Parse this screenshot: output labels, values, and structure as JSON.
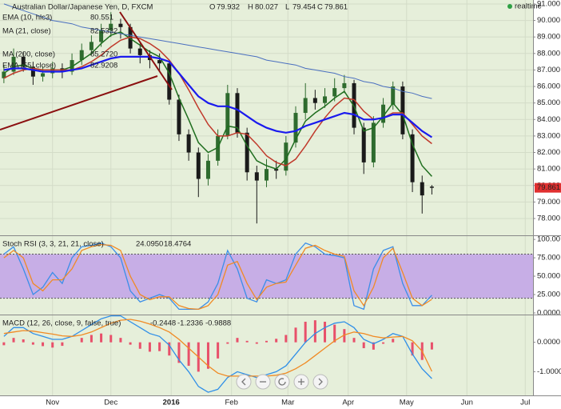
{
  "chart_data": [
    {
      "type": "candlestick",
      "title": "Australian Dollar/Japanese Yen, D, FXCM",
      "ohlc_labels": [
        "O",
        "H",
        "L",
        "C"
      ],
      "ohlc_values": [
        79.932,
        80.027,
        79.454,
        79.861
      ],
      "status": "realtime",
      "x": [
        -25,
        -20,
        -15,
        -10,
        -5,
        0,
        5,
        10,
        15,
        20,
        25,
        30,
        35,
        40,
        45,
        50,
        55,
        60,
        65,
        70,
        75,
        80,
        85,
        90,
        95,
        100,
        105,
        110,
        115,
        120,
        125,
        130,
        135,
        140,
        145,
        150,
        155,
        160,
        165,
        170,
        175,
        180,
        185,
        190,
        195
      ],
      "xlim": [
        -27,
        247
      ],
      "xticks": [
        {
          "value": 0,
          "label": "Nov"
        },
        {
          "value": 30,
          "label": "Dec"
        },
        {
          "value": 61,
          "label": "2016"
        },
        {
          "value": 92,
          "label": "Feb"
        },
        {
          "value": 121,
          "label": "Mar"
        },
        {
          "value": 152,
          "label": "Apr"
        },
        {
          "value": 182,
          "label": "May"
        },
        {
          "value": 213,
          "label": "Jun"
        },
        {
          "value": 243,
          "label": "Jul"
        }
      ],
      "open": [
        86.5,
        86.9,
        87.8,
        87.2,
        86.6,
        86.8,
        87.1,
        86.9,
        87.6,
        88.2,
        88.7,
        89.4,
        89.8,
        89.6,
        88.3,
        87.9,
        87.6,
        87.4,
        85.2,
        83.1,
        82.0,
        80.4,
        81.5,
        83.0,
        85.6,
        83.2,
        80.8,
        80.3,
        81.0,
        80.9,
        82.6,
        84.4,
        85.3,
        85.0,
        85.4,
        85.9,
        86.2,
        83.5,
        81.4,
        83.8,
        84.9,
        86.0,
        83.1,
        80.2,
        79.932
      ],
      "high": [
        87.3,
        88.3,
        88.1,
        87.5,
        87.2,
        87.5,
        87.4,
        88.0,
        88.6,
        89.1,
        89.8,
        90.5,
        90.1,
        89.8,
        88.6,
        88.2,
        88.0,
        87.6,
        85.5,
        83.4,
        82.3,
        81.9,
        83.4,
        86.1,
        85.9,
        83.5,
        81.2,
        81.6,
        81.5,
        83.0,
        84.8,
        86.2,
        85.8,
        85.9,
        86.5,
        86.7,
        86.4,
        83.8,
        84.2,
        85.3,
        86.3,
        86.3,
        83.4,
        80.6,
        80.027
      ],
      "low": [
        86.2,
        86.7,
        86.9,
        86.1,
        86.3,
        86.5,
        86.5,
        86.7,
        87.3,
        87.9,
        88.4,
        89.0,
        88.9,
        88.0,
        87.4,
        87.1,
        86.9,
        84.9,
        82.7,
        81.5,
        79.3,
        80.0,
        81.2,
        82.8,
        82.9,
        80.3,
        77.7,
        79.9,
        80.4,
        80.6,
        82.3,
        84.0,
        84.6,
        84.7,
        85.1,
        85.6,
        83.1,
        80.7,
        81.1,
        83.5,
        84.6,
        82.8,
        79.6,
        78.3,
        79.454
      ],
      "close": [
        86.9,
        87.8,
        87.2,
        86.6,
        86.8,
        87.1,
        86.9,
        87.6,
        88.2,
        88.7,
        89.4,
        89.8,
        89.6,
        88.3,
        87.9,
        87.6,
        87.4,
        85.2,
        83.1,
        82.0,
        80.4,
        81.5,
        83.0,
        85.6,
        83.2,
        80.8,
        80.3,
        81.0,
        80.9,
        82.6,
        84.4,
        85.3,
        85.0,
        85.4,
        85.9,
        86.2,
        83.5,
        81.4,
        83.8,
        84.9,
        86.0,
        83.1,
        80.2,
        79.4,
        79.861
      ],
      "up_color": "#2e6b2e",
      "down_color": "#1a1a1a",
      "ylim": [
        77.03,
        91.24
      ],
      "yticks": [
        {
          "value": 91,
          "label": "91.000"
        },
        {
          "value": 90,
          "label": "90.000"
        },
        {
          "value": 89,
          "label": "89.000"
        },
        {
          "value": 88,
          "label": "88.000"
        },
        {
          "value": 87,
          "label": "87.000"
        },
        {
          "value": 86,
          "label": "86.000"
        },
        {
          "value": 85,
          "label": "85.000"
        },
        {
          "value": 84,
          "label": "84.000"
        },
        {
          "value": 83,
          "label": "83.000"
        },
        {
          "value": 82,
          "label": "82.000"
        },
        {
          "value": 81,
          "label": "81.000"
        },
        {
          "value": 80,
          "label": "80.000"
        },
        {
          "value": 79,
          "label": "79.000"
        },
        {
          "value": 78,
          "label": "78.000"
        }
      ],
      "grid": true,
      "series": [
        {
          "name": "EMA (10, hlc3)",
          "color": "#1f6e1f",
          "line_width": 1.5,
          "legend_value": 80.551,
          "values": [
            86.8,
            87.2,
            87.3,
            87.1,
            87.0,
            87.0,
            87.0,
            87.2,
            87.6,
            88.0,
            88.6,
            89.1,
            89.3,
            88.9,
            88.5,
            88.1,
            87.8,
            86.8,
            85.3,
            84.0,
            82.6,
            82.0,
            82.3,
            83.6,
            83.5,
            82.4,
            81.5,
            81.2,
            81.0,
            81.6,
            82.8,
            83.9,
            84.4,
            84.8,
            85.3,
            85.7,
            84.8,
            83.3,
            83.5,
            84.2,
            85.0,
            84.3,
            82.5,
            81.2,
            80.551
          ]
        },
        {
          "name": "MA (21, close)",
          "color": "#c0392b",
          "line_width": 1.5,
          "legend_value": 82.5332,
          "values": [
            86.5,
            86.8,
            87.0,
            87.1,
            87.0,
            87.0,
            87.0,
            87.0,
            87.2,
            87.5,
            87.9,
            88.4,
            88.8,
            89.0,
            88.9,
            88.6,
            88.2,
            87.6,
            86.8,
            85.8,
            84.7,
            83.7,
            83.0,
            83.0,
            83.2,
            83.1,
            82.5,
            81.8,
            81.4,
            81.2,
            81.6,
            82.4,
            83.3,
            84.1,
            84.8,
            85.3,
            85.2,
            84.5,
            84.0,
            84.1,
            84.4,
            84.4,
            83.7,
            83.0,
            82.5332
          ]
        },
        {
          "name": "MA (200, close)",
          "color": "#4a6fbf",
          "line_width": 1,
          "legend_value": {
            "value": 85.272,
            "label": "85.2720"
          },
          "values": [
            91.0,
            90.8,
            90.6,
            90.4,
            90.2,
            90.0,
            89.9,
            89.8,
            89.6,
            89.5,
            89.4,
            89.3,
            89.2,
            89.1,
            89.0,
            88.9,
            88.8,
            88.7,
            88.6,
            88.5,
            88.4,
            88.3,
            88.2,
            88.1,
            88.0,
            87.9,
            87.8,
            87.6,
            87.5,
            87.4,
            87.3,
            87.1,
            87.0,
            86.9,
            86.8,
            86.6,
            86.5,
            86.3,
            86.2,
            86.0,
            85.9,
            85.7,
            85.6,
            85.4,
            85.272
          ]
        },
        {
          "name": "EMA (55, close)",
          "color": "#1a1aee",
          "line_width": 2.2,
          "legend_value": 82.9208,
          "values": [
            87.0,
            87.1,
            87.1,
            87.0,
            86.9,
            86.9,
            86.9,
            87.0,
            87.1,
            87.3,
            87.5,
            87.7,
            87.8,
            87.8,
            87.8,
            87.8,
            87.7,
            87.5,
            86.8,
            86.1,
            85.4,
            85.0,
            84.8,
            84.8,
            84.6,
            84.2,
            83.8,
            83.5,
            83.3,
            83.2,
            83.3,
            83.6,
            83.8,
            84.0,
            84.2,
            84.4,
            84.3,
            84.0,
            84.0,
            84.1,
            84.3,
            84.3,
            83.8,
            83.3,
            82.9208
          ]
        }
      ]
    },
    {
      "type": "line",
      "title": "Stoch RSI (3, 3, 21, 21, close)",
      "band": [
        20,
        80
      ],
      "band_color": "#c7aee6",
      "ylim": [
        -2.2,
        104.5
      ],
      "yticks": [
        {
          "value": 100,
          "label": "100.00"
        },
        {
          "value": 75,
          "label": "75.000"
        },
        {
          "value": 50,
          "label": "50.000"
        },
        {
          "value": 25,
          "label": "25.000"
        },
        {
          "value": 0,
          "label": "0.0000"
        }
      ],
      "series": [
        {
          "color": "#3b8ee8",
          "line_width": 1.3,
          "legend_value": {
            "value": 24.095,
            "label": "24.0950"
          },
          "values": [
            80,
            90,
            60,
            25,
            35,
            55,
            40,
            75,
            90,
            92,
            95,
            90,
            75,
            30,
            15,
            20,
            25,
            20,
            5,
            5,
            5,
            15,
            40,
            85,
            60,
            20,
            15,
            45,
            40,
            45,
            80,
            95,
            90,
            80,
            78,
            75,
            10,
            5,
            60,
            85,
            90,
            40,
            10,
            10,
            24.095
          ]
        },
        {
          "color": "#f08a24",
          "line_width": 1.3,
          "legend_value": 18.4764,
          "values": [
            75,
            85,
            75,
            40,
            30,
            45,
            45,
            60,
            85,
            90,
            93,
            92,
            85,
            50,
            25,
            18,
            22,
            22,
            10,
            6,
            5,
            10,
            25,
            65,
            70,
            40,
            18,
            35,
            40,
            42,
            65,
            88,
            92,
            85,
            80,
            77,
            30,
            10,
            35,
            75,
            88,
            55,
            20,
            10,
            18.4764
          ]
        }
      ]
    },
    {
      "type": "line",
      "title": "MACD (12, 26, close, 9, false, true)",
      "ylim": [
        -1.806,
        0.917
      ],
      "yticks": [
        {
          "value": 0,
          "label": "0.0000"
        },
        {
          "value": -1,
          "label": "-1.0000"
        }
      ],
      "series": [
        {
          "kind": "bar",
          "color": "#e8506a",
          "legend_value": -0.2448,
          "values": [
            -0.1,
            0.15,
            0.1,
            -0.08,
            -0.13,
            -0.18,
            -0.12,
            0,
            0.15,
            0.25,
            0.3,
            0.25,
            0.15,
            -0.08,
            -0.22,
            -0.32,
            -0.3,
            -0.45,
            -0.7,
            -0.8,
            -1.0,
            -0.9,
            -0.55,
            -0.05,
            0.15,
            0.05,
            -0.05,
            0.05,
            0.12,
            0.25,
            0.5,
            0.7,
            0.75,
            0.7,
            0.6,
            0.45,
            0.15,
            -0.2,
            -0.25,
            -0.05,
            0.12,
            0,
            -0.45,
            -0.6,
            -0.2448
          ]
        },
        {
          "color": "#2f8fe8",
          "line_width": 1.3,
          "legend_value": -1.2336,
          "values": [
            0.2,
            0.5,
            0.5,
            0.3,
            0.2,
            0.1,
            0.1,
            0.2,
            0.4,
            0.6,
            0.8,
            0.9,
            0.9,
            0.7,
            0.5,
            0.3,
            0.2,
            -0.1,
            -0.6,
            -1.0,
            -1.5,
            -1.7,
            -1.6,
            -1.2,
            -1.0,
            -1.1,
            -1.2,
            -1.1,
            -1.0,
            -0.8,
            -0.4,
            0,
            0.3,
            0.5,
            0.65,
            0.7,
            0.5,
            0.1,
            -0.05,
            0.1,
            0.3,
            0.2,
            -0.4,
            -0.9,
            -1.2336
          ]
        },
        {
          "color": "#f08a24",
          "line_width": 1.3,
          "legend_value": -0.9888,
          "values": [
            0.3,
            0.35,
            0.4,
            0.38,
            0.33,
            0.28,
            0.22,
            0.2,
            0.25,
            0.35,
            0.5,
            0.65,
            0.75,
            0.78,
            0.72,
            0.62,
            0.5,
            0.35,
            0.1,
            -0.2,
            -0.5,
            -0.8,
            -1.05,
            -1.15,
            -1.15,
            -1.15,
            -1.15,
            -1.15,
            -1.12,
            -1.05,
            -0.9,
            -0.7,
            -0.45,
            -0.2,
            0.05,
            0.25,
            0.35,
            0.3,
            0.2,
            0.15,
            0.18,
            0.2,
            0.05,
            -0.3,
            -0.9888
          ]
        }
      ]
    }
  ]
}
